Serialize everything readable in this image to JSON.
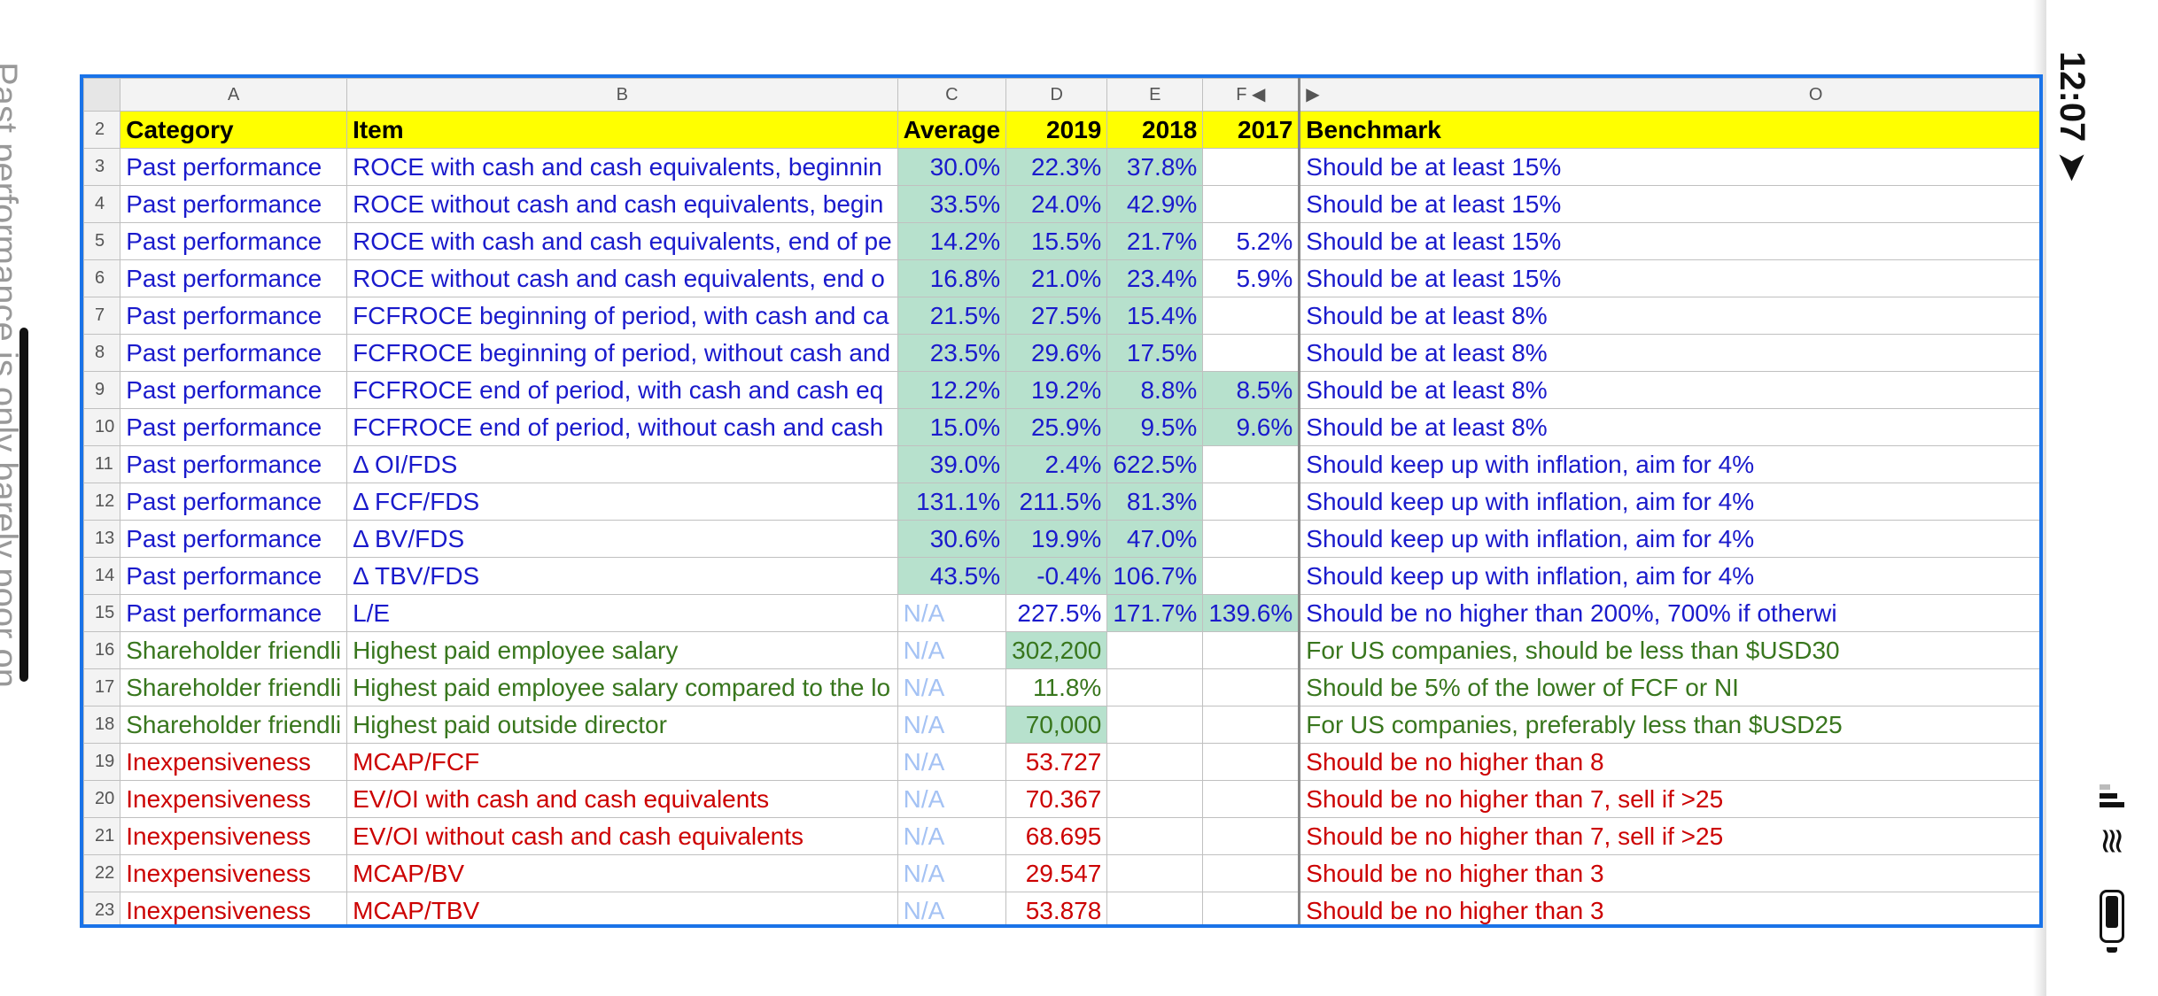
{
  "edge_text": "Past performance is only barely poor on",
  "status": {
    "time": "12:07"
  },
  "columns": {
    "a": "A",
    "b": "B",
    "c": "C",
    "d": "D",
    "e": "E",
    "f": "F",
    "o": "O"
  },
  "header_row": {
    "num": "2",
    "category": "Category",
    "item": "Item",
    "average": "Average",
    "y2019": "2019",
    "y2018": "2018",
    "y2017": "2017",
    "benchmark": "Benchmark"
  },
  "rows": [
    {
      "num": "3",
      "category": "Past performance",
      "item": "ROCE with cash and cash equivalents, beginnin",
      "average": "30.0%",
      "y2019": "22.3%",
      "y2018": "37.8%",
      "y2017": "",
      "benchmark": "Should be at least 15%"
    },
    {
      "num": "4",
      "category": "Past performance",
      "item": "ROCE without cash and cash equivalents, begin",
      "average": "33.5%",
      "y2019": "24.0%",
      "y2018": "42.9%",
      "y2017": "",
      "benchmark": "Should be at least 15%"
    },
    {
      "num": "5",
      "category": "Past performance",
      "item": "ROCE with cash and cash equivalents, end of pe",
      "average": "14.2%",
      "y2019": "15.5%",
      "y2018": "21.7%",
      "y2017": "5.2%",
      "benchmark": "Should be at least 15%"
    },
    {
      "num": "6",
      "category": "Past performance",
      "item": "ROCE without cash and cash equivalents, end o",
      "average": "16.8%",
      "y2019": "21.0%",
      "y2018": "23.4%",
      "y2017": "5.9%",
      "benchmark": "Should be at least 15%"
    },
    {
      "num": "7",
      "category": "Past performance",
      "item": "FCFROCE beginning of period, with cash and ca",
      "average": "21.5%",
      "y2019": "27.5%",
      "y2018": "15.4%",
      "y2017": "",
      "benchmark": "Should be at least 8%"
    },
    {
      "num": "8",
      "category": "Past performance",
      "item": "FCFROCE beginning of period, without cash and",
      "average": "23.5%",
      "y2019": "29.6%",
      "y2018": "17.5%",
      "y2017": "",
      "benchmark": "Should be at least 8%"
    },
    {
      "num": "9",
      "category": "Past performance",
      "item": "FCFROCE end of period, with cash and cash eq",
      "average": "12.2%",
      "y2019": "19.2%",
      "y2018": "8.8%",
      "y2017": "8.5%",
      "benchmark": "Should be at least 8%"
    },
    {
      "num": "10",
      "category": "Past performance",
      "item": "FCFROCE end of period, without cash and cash",
      "average": "15.0%",
      "y2019": "25.9%",
      "y2018": "9.5%",
      "y2017": "9.6%",
      "benchmark": "Should be at least 8%"
    },
    {
      "num": "11",
      "category": "Past performance",
      "item": "Δ OI/FDS",
      "average": "39.0%",
      "y2019": "2.4%",
      "y2018": "622.5%",
      "y2017": "",
      "benchmark": "Should keep up with inflation, aim for 4%"
    },
    {
      "num": "12",
      "category": "Past performance",
      "item": "Δ FCF/FDS",
      "average": "131.1%",
      "y2019": "211.5%",
      "y2018": "81.3%",
      "y2017": "",
      "benchmark": "Should keep up with inflation, aim for 4%"
    },
    {
      "num": "13",
      "category": "Past performance",
      "item": "Δ BV/FDS",
      "average": "30.6%",
      "y2019": "19.9%",
      "y2018": "47.0%",
      "y2017": "",
      "benchmark": "Should keep up with inflation, aim for 4%"
    },
    {
      "num": "14",
      "category": "Past performance",
      "item": "Δ TBV/FDS",
      "average": "43.5%",
      "y2019": "-0.4%",
      "y2018": "106.7%",
      "y2017": "",
      "benchmark": "Should keep up with inflation, aim for 4%"
    },
    {
      "num": "15",
      "category": "Past performance",
      "item": "L/E",
      "average": "N/A",
      "y2019": "227.5%",
      "y2018": "171.7%",
      "y2017": "139.6%",
      "benchmark": "Should be no higher than 200%, 700% if otherwi"
    },
    {
      "num": "16",
      "category": "Shareholder friendli",
      "item": "Highest paid employee salary",
      "average": "N/A",
      "y2019": "302,200",
      "y2018": "",
      "y2017": "",
      "benchmark": "For US companies, should be less than $USD30"
    },
    {
      "num": "17",
      "category": "Shareholder friendli",
      "item": "Highest paid employee salary compared to the lo",
      "average": "N/A",
      "y2019": "11.8%",
      "y2018": "",
      "y2017": "",
      "benchmark": "Should be 5% of the lower of FCF or NI"
    },
    {
      "num": "18",
      "category": "Shareholder friendli",
      "item": "Highest paid outside director",
      "average": "N/A",
      "y2019": "70,000",
      "y2018": "",
      "y2017": "",
      "benchmark": "For US companies, preferably less than $USD25"
    },
    {
      "num": "19",
      "category": "Inexpensiveness",
      "item": "MCAP/FCF",
      "average": "N/A",
      "y2019": "53.727",
      "y2018": "",
      "y2017": "",
      "benchmark": "Should be no higher than 8"
    },
    {
      "num": "20",
      "category": "Inexpensiveness",
      "item": "EV/OI with cash and cash equivalents",
      "average": "N/A",
      "y2019": "70.367",
      "y2018": "",
      "y2017": "",
      "benchmark": "Should be no higher than 7, sell if >25"
    },
    {
      "num": "21",
      "category": "Inexpensiveness",
      "item": "EV/OI without cash and cash equivalents",
      "average": "N/A",
      "y2019": "68.695",
      "y2018": "",
      "y2017": "",
      "benchmark": "Should be no higher than 7, sell if >25"
    },
    {
      "num": "22",
      "category": "Inexpensiveness",
      "item": "MCAP/BV",
      "average": "N/A",
      "y2019": "29.547",
      "y2018": "",
      "y2017": "",
      "benchmark": "Should be no higher than 3"
    },
    {
      "num": "23",
      "category": "Inexpensiveness",
      "item": "MCAP/TBV",
      "average": "N/A",
      "y2019": "53.878",
      "y2018": "",
      "y2017": "",
      "benchmark": "Should be no higher than 3"
    }
  ],
  "colors": {
    "header_fill": "#ffff00",
    "green_fill": "#b7e1cd",
    "blue_text": "#1a1acc",
    "green_text": "#38761d",
    "red_text": "#cc0000",
    "na_text": "#a4c2f4",
    "selection": "#1a73e8"
  },
  "icons": {
    "signal": "signal-icon",
    "wifi": "wifi-icon",
    "battery": "battery-icon",
    "scroll_left": "scroll-left-icon",
    "scroll_right": "scroll-right-icon"
  }
}
